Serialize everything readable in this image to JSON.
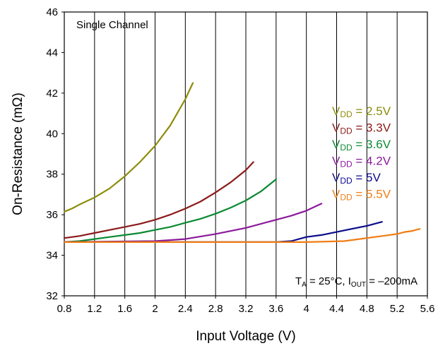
{
  "chart_data": {
    "type": "line",
    "title": "",
    "xlabel": "Input Voltage (V)",
    "ylabel": "On-Resistance (mΩ)",
    "xlim": [
      0.8,
      5.6
    ],
    "ylim": [
      32,
      46
    ],
    "xticks": [
      "0.8",
      "1.2",
      "1.6",
      "2",
      "2.4",
      "2.8",
      "3.2",
      "3.6",
      "4",
      "4.4",
      "4.8",
      "5.2",
      "5.6"
    ],
    "xtick_values": [
      0.8,
      1.2,
      1.6,
      2.0,
      2.4,
      2.8,
      3.2,
      3.6,
      4.0,
      4.4,
      4.8,
      5.2,
      5.6
    ],
    "yticks": [
      "32",
      "34",
      "36",
      "38",
      "40",
      "42",
      "44",
      "46"
    ],
    "ytick_values": [
      32,
      34,
      36,
      38,
      40,
      42,
      44,
      46
    ],
    "grid": "vertical",
    "annotation_top": "Single Channel",
    "annotation_bottom": {
      "t_main": "T",
      "t_sub": "A",
      "t_rest": " = 25°C, I",
      "i_sub": "OUT",
      "i_rest": " = –200mA"
    },
    "legend_position": "right",
    "series": [
      {
        "name_main": "V",
        "name_sub": "DD",
        "name_rest": " = 2.5V",
        "color": "#8c8c0a",
        "x": [
          0.8,
          0.9,
          1.0,
          1.2,
          1.4,
          1.6,
          1.8,
          2.0,
          2.2,
          2.4,
          2.5
        ],
        "y": [
          36.15,
          36.3,
          36.5,
          36.85,
          37.3,
          37.9,
          38.6,
          39.4,
          40.4,
          41.7,
          42.5
        ]
      },
      {
        "name_main": "V",
        "name_sub": "DD",
        "name_rest": " = 3.3V",
        "color": "#8b1a1a",
        "x": [
          0.8,
          1.0,
          1.2,
          1.4,
          1.6,
          1.8,
          2.0,
          2.2,
          2.4,
          2.6,
          2.8,
          3.0,
          3.2,
          3.3
        ],
        "y": [
          34.85,
          34.95,
          35.1,
          35.25,
          35.4,
          35.55,
          35.75,
          36.0,
          36.3,
          36.65,
          37.1,
          37.6,
          38.2,
          38.6
        ]
      },
      {
        "name_main": "V",
        "name_sub": "DD",
        "name_rest": " = 3.6V",
        "color": "#0a8a32",
        "x": [
          0.8,
          1.0,
          1.2,
          1.4,
          1.6,
          1.8,
          2.0,
          2.2,
          2.4,
          2.6,
          2.8,
          3.0,
          3.2,
          3.4,
          3.6
        ],
        "y": [
          34.65,
          34.7,
          34.8,
          34.9,
          35.0,
          35.1,
          35.25,
          35.4,
          35.6,
          35.8,
          36.05,
          36.35,
          36.7,
          37.15,
          37.75
        ]
      },
      {
        "name_main": "V",
        "name_sub": "DD",
        "name_rest": " = 4.2V",
        "color": "#8b1a9b",
        "x": [
          0.8,
          2.0,
          2.4,
          2.8,
          3.2,
          3.6,
          3.8,
          4.0,
          4.2
        ],
        "y": [
          34.65,
          34.7,
          34.8,
          35.05,
          35.35,
          35.75,
          35.95,
          36.2,
          36.55
        ]
      },
      {
        "name_main": "V",
        "name_sub": "DD",
        "name_rest": " = 5V",
        "color": "#0b0b8b",
        "x": [
          0.8,
          3.6,
          3.8,
          4.0,
          4.2,
          4.4,
          4.6,
          4.8,
          5.0
        ],
        "y": [
          34.65,
          34.65,
          34.7,
          34.9,
          35.0,
          35.15,
          35.3,
          35.45,
          35.65
        ]
      },
      {
        "name_main": "V",
        "name_sub": "DD",
        "name_rest": " = 5.5V",
        "color": "#f07d14",
        "x": [
          0.8,
          4.0,
          4.5,
          4.7,
          5.0,
          5.2,
          5.3,
          5.4,
          5.5
        ],
        "y": [
          34.65,
          34.65,
          34.7,
          34.8,
          34.95,
          35.05,
          35.15,
          35.2,
          35.3
        ]
      }
    ]
  }
}
